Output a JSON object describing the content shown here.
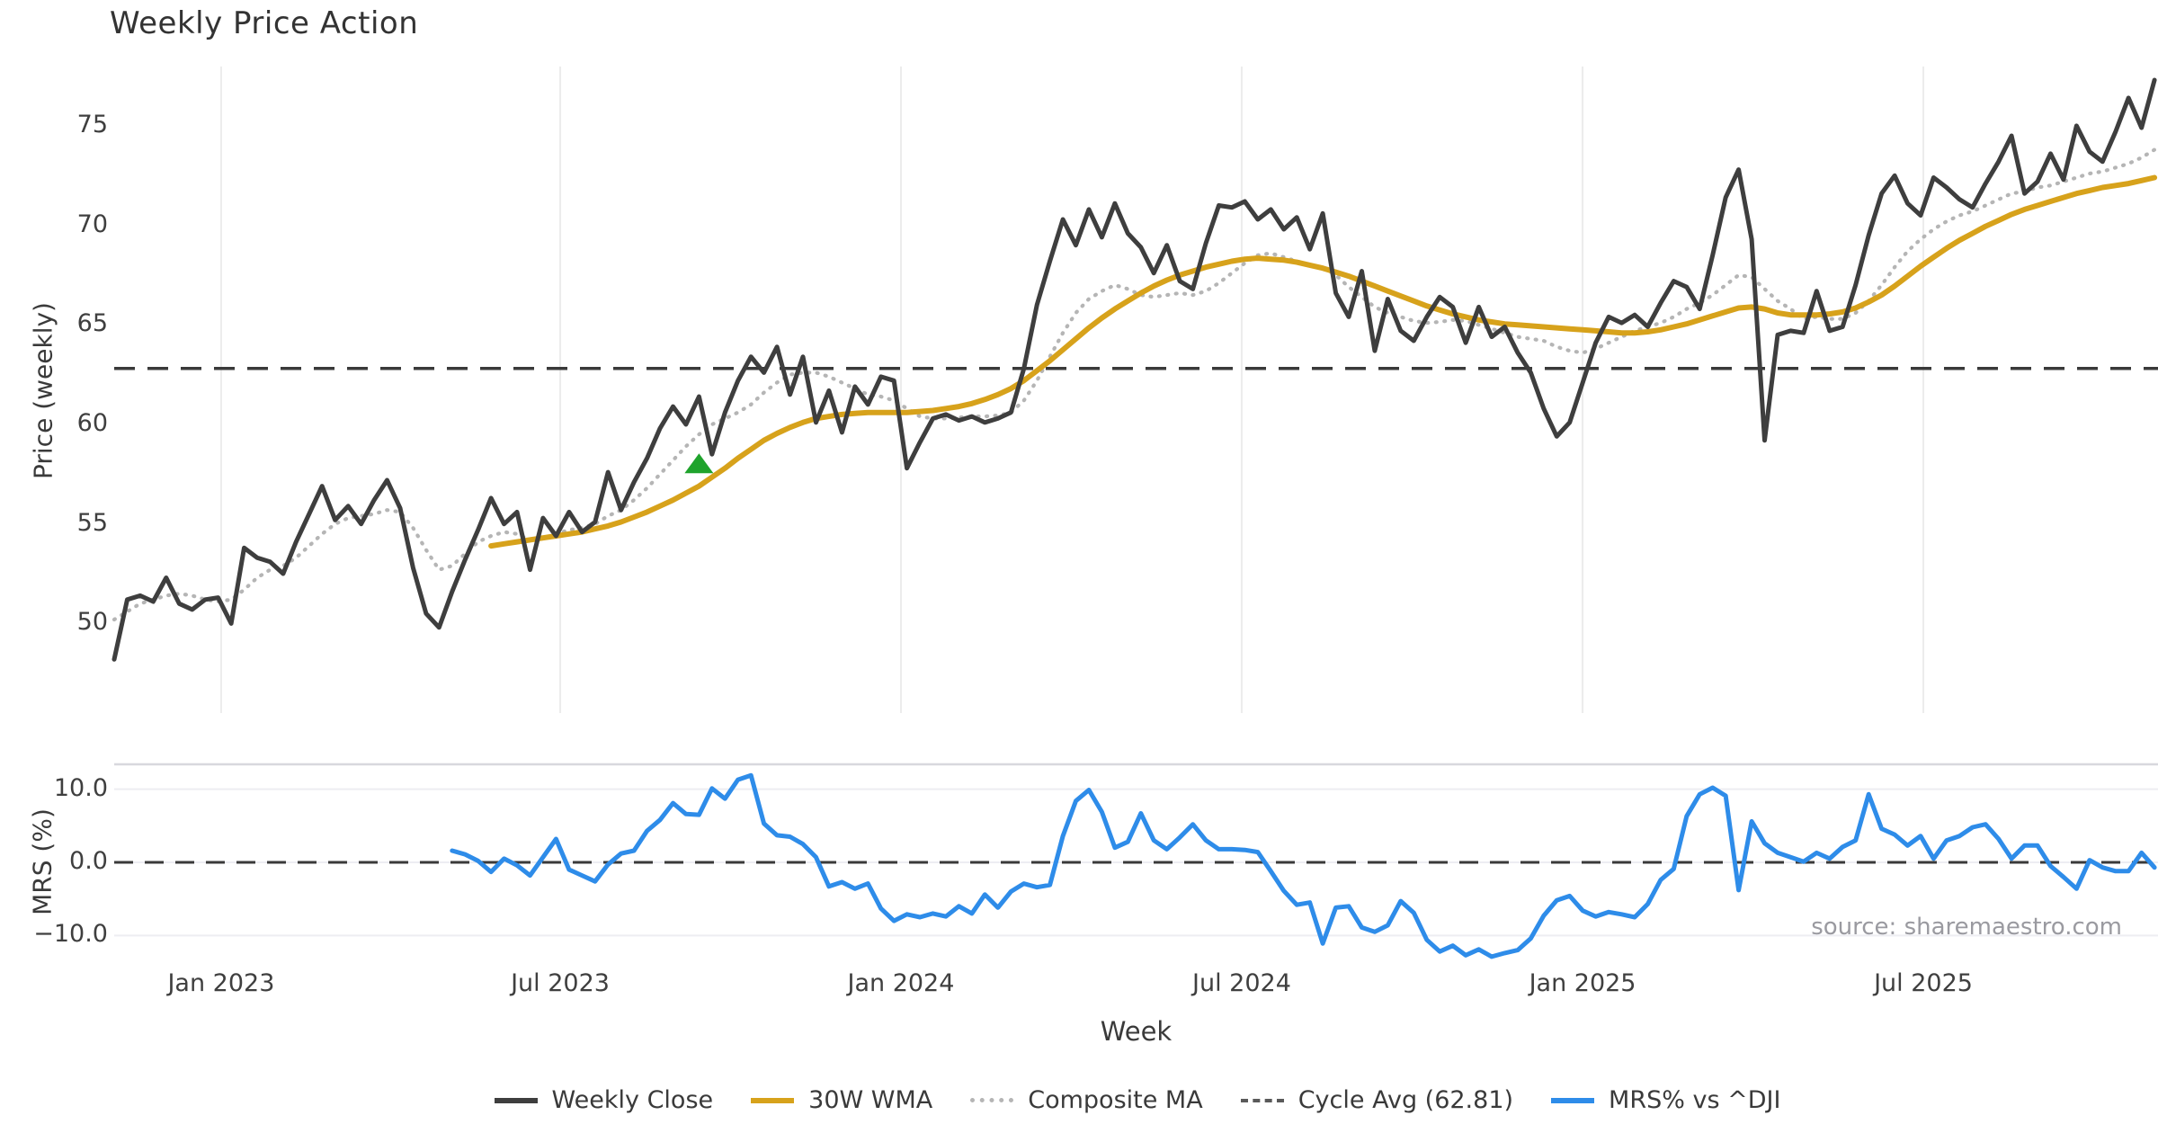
{
  "header": {
    "title": "Weekly Price Action"
  },
  "axes": {
    "price_ylabel": "Price (weekly)",
    "mrs_ylabel": "MRS (%)",
    "xlabel": "Week",
    "price_ticks": [
      "75",
      "70",
      "65",
      "60",
      "55",
      "50"
    ],
    "mrs_ticks": [
      "10.0",
      "0.0",
      "−10.0"
    ]
  },
  "source_note": "source: sharemaestro.com",
  "legend": {
    "items": [
      {
        "label": "Weekly Close",
        "style": "solid",
        "color": "#3e3e3e"
      },
      {
        "label": "30W WMA",
        "style": "solid",
        "color": "#d7a21b"
      },
      {
        "label": "Composite MA",
        "style": "dotted",
        "color": "#b5b5b5"
      },
      {
        "label": "Cycle Avg (62.81)",
        "style": "dashed",
        "color": "#5a5a5a"
      },
      {
        "label": "MRS% vs ^DJI",
        "style": "solid",
        "color": "#2e8ce9"
      }
    ]
  },
  "colors": {
    "close": "#3e3e3e",
    "wma": "#d7a21b",
    "composite": "#b5b5b5",
    "cycle_dash": "#3a3a3a",
    "mrs": "#2e8ce9",
    "zero_dash": "#3a3a3a",
    "grid": "#ececec",
    "panel_spine": "#d8d8de",
    "hgrid": "#ededf2",
    "marker_green": "#1fa32c",
    "background": "#ffffff"
  },
  "chart_data": {
    "type": "line",
    "title": "Weekly Price Action",
    "x_unit": "weeks, Nov 2022 – Nov 2025",
    "weeks_total": 158,
    "x_ticks": [
      {
        "label": "Jan 2023",
        "week": 8.23
      },
      {
        "label": "Jul 2023",
        "week": 34.32
      },
      {
        "label": "Jan 2024",
        "week": 60.54
      },
      {
        "label": "Jul 2024",
        "week": 86.76
      },
      {
        "label": "Jan 2025",
        "week": 112.99
      },
      {
        "label": "Jul 2025",
        "week": 139.21
      }
    ],
    "panels": [
      {
        "name": "price",
        "ylabel": "Price (weekly)",
        "ylim": [
          45.5,
          78.0
        ],
        "yticks": [
          75,
          70,
          65,
          60,
          55,
          50
        ],
        "cycle_avg": 62.81,
        "buy_marker": {
          "week": 45,
          "value": 58.0,
          "shape": "triangle-up",
          "color": "#1fa32c"
        },
        "series": [
          {
            "name": "Weekly Close",
            "start_week": 0,
            "values": [
              48.2,
              51.2,
              51.4,
              51.1,
              52.3,
              51.0,
              50.7,
              51.2,
              51.3,
              50.0,
              53.8,
              53.3,
              53.1,
              52.5,
              54.1,
              55.5,
              56.9,
              55.2,
              55.9,
              55.0,
              56.2,
              57.2,
              55.8,
              52.8,
              50.5,
              49.8,
              51.6,
              53.2,
              54.7,
              56.3,
              55.0,
              55.6,
              52.7,
              55.3,
              54.4,
              55.6,
              54.6,
              55.1,
              57.6,
              55.7,
              57.1,
              58.3,
              59.8,
              60.9,
              60.0,
              61.4,
              58.5,
              60.6,
              62.2,
              63.4,
              62.6,
              63.9,
              61.5,
              63.4,
              60.1,
              61.7,
              59.6,
              61.9,
              61.0,
              62.4,
              62.2,
              57.8,
              59.1,
              60.3,
              60.5,
              60.2,
              60.4,
              60.1,
              60.3,
              60.6,
              62.8,
              66.0,
              68.2,
              70.3,
              69.0,
              70.8,
              69.4,
              71.1,
              69.6,
              68.9,
              67.6,
              69.0,
              67.2,
              66.8,
              69.1,
              71.0,
              70.9,
              71.2,
              70.3,
              70.8,
              69.8,
              70.4,
              68.8,
              70.6,
              66.6,
              65.4,
              67.7,
              63.7,
              66.3,
              64.7,
              64.2,
              65.4,
              66.4,
              65.9,
              64.1,
              65.9,
              64.4,
              64.9,
              63.6,
              62.6,
              60.8,
              59.4,
              60.1,
              62.1,
              64.1,
              65.4,
              65.1,
              65.5,
              64.9,
              66.1,
              67.2,
              66.9,
              65.8,
              68.5,
              71.4,
              72.8,
              69.3,
              59.2,
              64.5,
              64.7,
              64.6,
              66.7,
              64.7,
              64.9,
              67.0,
              69.5,
              71.6,
              72.5,
              71.1,
              70.5,
              72.4,
              71.9,
              71.3,
              70.9,
              72.1,
              73.2,
              74.5,
              71.6,
              72.2,
              73.6,
              72.3,
              75.0,
              73.7,
              73.2,
              74.7,
              76.4,
              74.9,
              77.3
            ]
          },
          {
            "name": "30W WMA",
            "start_week": 29,
            "values": [
              53.9,
              54.0,
              54.1,
              54.2,
              54.3,
              54.4,
              54.5,
              54.6,
              54.75,
              54.9,
              55.1,
              55.35,
              55.6,
              55.9,
              56.2,
              56.55,
              56.9,
              57.35,
              57.8,
              58.3,
              58.75,
              59.2,
              59.55,
              59.85,
              60.1,
              60.3,
              60.4,
              60.5,
              60.55,
              60.6,
              60.6,
              60.6,
              60.6,
              60.65,
              60.7,
              60.8,
              60.9,
              61.05,
              61.25,
              61.5,
              61.8,
              62.2,
              62.7,
              63.2,
              63.75,
              64.3,
              64.85,
              65.35,
              65.8,
              66.2,
              66.6,
              66.95,
              67.25,
              67.5,
              67.7,
              67.9,
              68.05,
              68.2,
              68.3,
              68.35,
              68.3,
              68.25,
              68.15,
              68.0,
              67.85,
              67.65,
              67.45,
              67.2,
              66.95,
              66.7,
              66.45,
              66.2,
              65.95,
              65.75,
              65.55,
              65.4,
              65.25,
              65.15,
              65.05,
              65.0,
              64.95,
              64.9,
              64.85,
              64.8,
              64.75,
              64.7,
              64.65,
              64.6,
              64.6,
              64.65,
              64.75,
              64.9,
              65.05,
              65.25,
              65.45,
              65.65,
              65.85,
              65.9,
              65.8,
              65.6,
              65.5,
              65.5,
              65.5,
              65.55,
              65.65,
              65.85,
              66.15,
              66.5,
              66.95,
              67.45,
              67.95,
              68.4,
              68.85,
              69.25,
              69.6,
              69.95,
              70.25,
              70.55,
              70.8,
              71.0,
              71.2,
              71.4,
              71.6,
              71.75,
              71.9,
              72.0,
              72.1,
              72.25,
              72.4
            ]
          },
          {
            "name": "Composite MA",
            "start_week": 0,
            "values": [
              50.2,
              50.6,
              51.0,
              51.2,
              51.4,
              51.5,
              51.4,
              51.2,
              51.1,
              51.2,
              51.7,
              52.3,
              52.7,
              52.9,
              53.3,
              53.9,
              54.5,
              55.0,
              55.3,
              55.4,
              55.5,
              55.7,
              55.6,
              54.8,
              53.7,
              52.7,
              52.9,
              53.5,
              54.1,
              54.4,
              54.6,
              54.5,
              54.2,
              54.3,
              54.5,
              54.7,
              54.8,
              55.0,
              55.4,
              55.7,
              56.2,
              56.8,
              57.5,
              58.2,
              58.9,
              59.5,
              60.0,
              60.3,
              60.6,
              61.0,
              61.6,
              62.1,
              62.5,
              62.6,
              62.6,
              62.4,
              62.1,
              61.8,
              61.5,
              61.4,
              61.2,
              60.8,
              60.4,
              60.3,
              60.3,
              60.35,
              60.4,
              60.4,
              60.45,
              60.6,
              61.2,
              62.2,
              63.4,
              64.6,
              65.6,
              66.3,
              66.7,
              67.0,
              66.8,
              66.5,
              66.4,
              66.5,
              66.6,
              66.5,
              66.7,
              67.1,
              67.6,
              68.1,
              68.5,
              68.6,
              68.4,
              68.2,
              68.0,
              67.9,
              67.5,
              66.9,
              66.4,
              65.9,
              65.6,
              65.4,
              65.2,
              65.1,
              65.15,
              65.25,
              65.2,
              65.0,
              64.8,
              64.6,
              64.4,
              64.3,
              64.2,
              63.9,
              63.7,
              63.6,
              63.8,
              64.1,
              64.4,
              64.7,
              64.9,
              65.1,
              65.4,
              65.8,
              66.1,
              66.5,
              67.0,
              67.5,
              67.4,
              66.8,
              66.2,
              65.8,
              65.3,
              65.4,
              65.3,
              65.3,
              65.6,
              66.2,
              67.0,
              67.9,
              68.7,
              69.3,
              69.8,
              70.2,
              70.5,
              70.7,
              71.0,
              71.3,
              71.6,
              71.7,
              71.9,
              72.0,
              72.2,
              72.4,
              72.6,
              72.7,
              72.9,
              73.1,
              73.4,
              73.8
            ]
          }
        ]
      },
      {
        "name": "mrs",
        "ylabel": "MRS (%)",
        "ylim": [
          -13.2,
          13.4
        ],
        "yticks": [
          10.0,
          0.0,
          -10.0
        ],
        "zero_line": 0.0,
        "series": [
          {
            "name": "MRS% vs ^DJI",
            "start_week": 26,
            "values": [
              1.6,
              1.1,
              0.2,
              -1.3,
              0.5,
              -0.4,
              -1.8,
              0.7,
              3.2,
              -1.0,
              -1.8,
              -2.6,
              -0.3,
              1.2,
              1.6,
              4.3,
              5.8,
              8.1,
              6.6,
              6.5,
              10.1,
              8.7,
              11.3,
              11.9,
              5.3,
              3.7,
              3.5,
              2.5,
              0.7,
              -3.3,
              -2.7,
              -3.6,
              -2.9,
              -6.3,
              -8.0,
              -7.1,
              -7.5,
              -7.0,
              -7.4,
              -6.0,
              -7.0,
              -4.4,
              -6.2,
              -4.0,
              -2.9,
              -3.4,
              -3.1,
              3.6,
              8.4,
              9.9,
              6.9,
              2.0,
              2.8,
              6.7,
              3.0,
              1.8,
              3.4,
              5.2,
              3.0,
              1.8,
              1.8,
              1.7,
              1.4,
              -1.2,
              -3.9,
              -5.8,
              -5.5,
              -11.1,
              -6.2,
              -6.0,
              -8.9,
              -9.5,
              -8.6,
              -5.3,
              -6.9,
              -10.6,
              -12.2,
              -11.4,
              -12.7,
              -11.9,
              -12.9,
              -12.4,
              -12.0,
              -10.4,
              -7.3,
              -5.2,
              -4.6,
              -6.6,
              -7.4,
              -6.8,
              -7.1,
              -7.5,
              -5.7,
              -2.4,
              -0.9,
              6.3,
              9.3,
              10.2,
              9.1,
              -3.8,
              5.6,
              2.6,
              1.3,
              0.7,
              0.1,
              1.3,
              0.5,
              2.1,
              3.0,
              9.3,
              4.6,
              3.8,
              2.3,
              3.6,
              0.5,
              3.0,
              3.6,
              4.8,
              5.2,
              3.2,
              0.5,
              2.3,
              2.3,
              -0.5,
              -2.0,
              -3.6,
              0.3,
              -0.7,
              -1.2,
              -1.2,
              1.3,
              -0.7
            ]
          }
        ]
      }
    ]
  }
}
